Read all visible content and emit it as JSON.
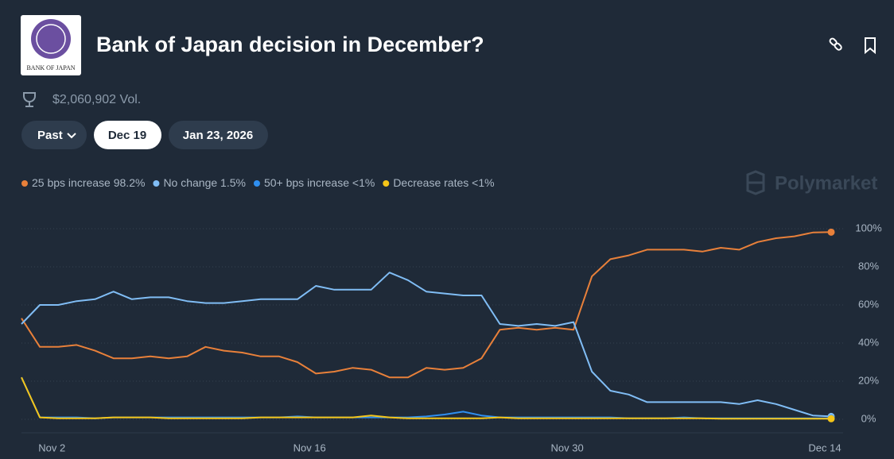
{
  "header": {
    "logo_text": "BANK OF JAPAN",
    "title": "Bank of Japan decision in December?",
    "volume": "$2,060,902 Vol.",
    "tabs": [
      "Past",
      "Dec 19",
      "Jan 23, 2026"
    ],
    "watermark": "Polymarket"
  },
  "chart_data": {
    "type": "line",
    "categories": [
      null,
      null,
      "Nov 2",
      null,
      null,
      null,
      null,
      null,
      null,
      null,
      null,
      null,
      null,
      null,
      null,
      null,
      "Nov 16",
      null,
      null,
      null,
      null,
      null,
      null,
      null,
      null,
      null,
      null,
      null,
      null,
      null,
      "Nov 30",
      null,
      null,
      null,
      null,
      null,
      null,
      null,
      null,
      null,
      null,
      null,
      null,
      null,
      "Dec 14"
    ],
    "series": [
      {
        "name": "25 bps increase",
        "current": "98.2%",
        "color": "#e8803a",
        "values": [
          53,
          38,
          38,
          39,
          36,
          32,
          32,
          33,
          32,
          33,
          38,
          36,
          35,
          33,
          33,
          30,
          24,
          25,
          27,
          26,
          22,
          22,
          27,
          26,
          27,
          32,
          47,
          48,
          47,
          48,
          47,
          75,
          84,
          86,
          89,
          89,
          89,
          88,
          90,
          89,
          93,
          95,
          96,
          98,
          98.2
        ]
      },
      {
        "name": "No change",
        "current": "1.5%",
        "color": "#80bdf5",
        "values": [
          50,
          60,
          60,
          62,
          63,
          67,
          63,
          64,
          64,
          62,
          61,
          61,
          62,
          63,
          63,
          63,
          70,
          68,
          68,
          68,
          77,
          73,
          67,
          66,
          65,
          65,
          50,
          49,
          50,
          49,
          51,
          25,
          15,
          13,
          9,
          9,
          9,
          9,
          9,
          8,
          10,
          8,
          5,
          2,
          1.5
        ]
      },
      {
        "name": "50+ bps increase",
        "current": "<1%",
        "color": "#2f8ff0",
        "values": [
          22,
          1,
          1,
          1,
          0.5,
          1,
          1,
          1,
          1,
          1,
          1,
          1,
          1,
          1,
          1,
          1.5,
          1,
          1,
          1,
          1,
          1,
          1,
          1.5,
          2.5,
          4,
          2,
          1,
          1,
          1,
          1,
          1,
          1,
          1,
          0.5,
          0.5,
          0.5,
          1,
          0.5,
          0.5,
          0.5,
          0.5,
          0.5,
          0.5,
          0.5,
          0.5
        ]
      },
      {
        "name": "Decrease rates",
        "current": "<1%",
        "color": "#f5c518",
        "values": [
          22,
          1,
          0.5,
          0.5,
          0.5,
          1,
          1,
          1,
          0.5,
          0.5,
          0.5,
          0.5,
          0.5,
          1,
          1,
          1,
          1,
          1,
          1,
          2,
          1,
          0.5,
          0.5,
          0.5,
          0.5,
          0.5,
          1,
          0.5,
          0.5,
          0.5,
          0.5,
          0.5,
          0.5,
          0.5,
          0.5,
          0.5,
          0.5,
          0.5,
          0.3,
          0.3,
          0.3,
          0.3,
          0.3,
          0.3,
          0.3
        ]
      }
    ],
    "ylim": [
      0,
      100
    ],
    "yticks": [
      {
        "value": 0,
        "label": "0%"
      },
      {
        "value": 20,
        "label": "20%"
      },
      {
        "value": 40,
        "label": "40%"
      },
      {
        "value": 60,
        "label": "60%"
      },
      {
        "value": 80,
        "label": "80%"
      },
      {
        "value": 100,
        "label": "100%"
      }
    ],
    "grid": true
  }
}
